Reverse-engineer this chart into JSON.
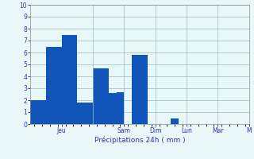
{
  "bar_values": [
    2.0,
    2.0,
    6.5,
    6.5,
    7.5,
    7.5,
    1.8,
    1.8,
    4.7,
    4.7,
    2.6,
    2.7,
    0,
    5.8,
    5.8,
    0,
    0,
    0,
    0.5,
    0,
    0,
    0,
    0,
    0,
    0,
    0,
    0,
    0
  ],
  "n_bars": 28,
  "bar_color": "#1155bb",
  "bar_edge_color": "#1155bb",
  "background_color": "#e8f8f8",
  "grid_color": "#99bbbb",
  "xlabel": "Précipitations 24h ( mm )",
  "xlabel_color": "#3333aa",
  "tick_label_color": "#3333aa",
  "ylim": [
    0,
    10
  ],
  "yticks": [
    0,
    1,
    2,
    3,
    4,
    5,
    6,
    7,
    8,
    9,
    10
  ],
  "day_labels": [
    "Jeu",
    "Sam",
    "Dim",
    "Lun",
    "Mar",
    "M"
  ],
  "day_tick_positions": [
    3.5,
    11.5,
    15.5,
    19.5,
    23.5,
    27.5
  ],
  "vline_positions": [
    7.5,
    11.5,
    15.5,
    19.5,
    23.5,
    27.5
  ],
  "figure_bg": "#e8f8f8",
  "bar_width": 1.0
}
